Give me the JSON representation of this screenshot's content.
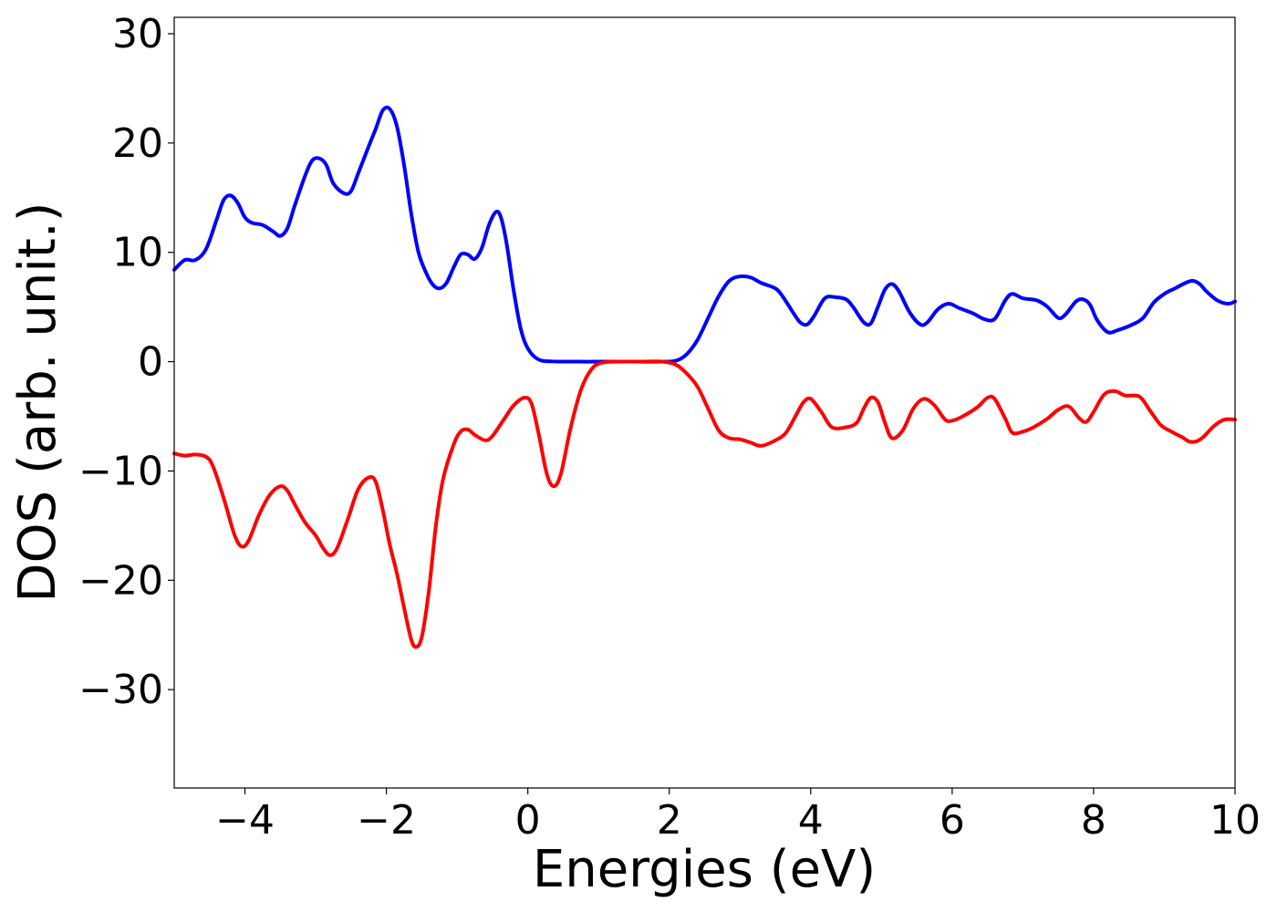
{
  "chart_data": {
    "type": "line",
    "xlabel": "Energies (eV)",
    "ylabel": "DOS (arb. unit.)",
    "xlim": [
      -5,
      10
    ],
    "ylim": [
      -39,
      31.5
    ],
    "x_ticks": [
      -4,
      -2,
      0,
      2,
      4,
      6,
      8,
      10
    ],
    "x_tick_labels": [
      "−4",
      "−2",
      "0",
      "2",
      "4",
      "6",
      "8",
      "10"
    ],
    "y_ticks": [
      -30,
      -20,
      -10,
      0,
      10,
      20,
      30
    ],
    "y_tick_labels": [
      "−30",
      "−20",
      "−10",
      "0",
      "10",
      "20",
      "30"
    ],
    "grid": false,
    "series": [
      {
        "color": "#0000ff",
        "points": [
          [
            -5.0,
            8.4
          ],
          [
            -4.85,
            9.3
          ],
          [
            -4.7,
            9.3
          ],
          [
            -4.55,
            10.3
          ],
          [
            -4.4,
            13.0
          ],
          [
            -4.3,
            14.8
          ],
          [
            -4.2,
            15.2
          ],
          [
            -4.1,
            14.5
          ],
          [
            -4.0,
            13.2
          ],
          [
            -3.9,
            12.7
          ],
          [
            -3.75,
            12.5
          ],
          [
            -3.6,
            11.9
          ],
          [
            -3.5,
            11.5
          ],
          [
            -3.4,
            12.2
          ],
          [
            -3.3,
            14.2
          ],
          [
            -3.15,
            17.0
          ],
          [
            -3.05,
            18.4
          ],
          [
            -2.95,
            18.6
          ],
          [
            -2.85,
            18.0
          ],
          [
            -2.75,
            16.3
          ],
          [
            -2.6,
            15.4
          ],
          [
            -2.5,
            15.6
          ],
          [
            -2.4,
            17.2
          ],
          [
            -2.25,
            19.7
          ],
          [
            -2.15,
            21.3
          ],
          [
            -2.05,
            23.0
          ],
          [
            -1.95,
            23.1
          ],
          [
            -1.85,
            21.5
          ],
          [
            -1.75,
            18.0
          ],
          [
            -1.65,
            13.6
          ],
          [
            -1.55,
            10.1
          ],
          [
            -1.45,
            8.3
          ],
          [
            -1.35,
            7.1
          ],
          [
            -1.25,
            6.7
          ],
          [
            -1.15,
            7.2
          ],
          [
            -1.05,
            8.6
          ],
          [
            -0.95,
            9.8
          ],
          [
            -0.85,
            9.8
          ],
          [
            -0.75,
            9.4
          ],
          [
            -0.65,
            10.4
          ],
          [
            -0.55,
            12.5
          ],
          [
            -0.45,
            13.7
          ],
          [
            -0.38,
            13.2
          ],
          [
            -0.3,
            10.8
          ],
          [
            -0.2,
            6.5
          ],
          [
            -0.1,
            3.0
          ],
          [
            0.0,
            1.2
          ],
          [
            0.15,
            0.2
          ],
          [
            0.35,
            0.02
          ],
          [
            0.7,
            0.0
          ],
          [
            1.0,
            0.0
          ],
          [
            1.5,
            0.0
          ],
          [
            1.9,
            0.0
          ],
          [
            2.1,
            0.1
          ],
          [
            2.25,
            0.7
          ],
          [
            2.4,
            2.0
          ],
          [
            2.55,
            4.0
          ],
          [
            2.7,
            6.0
          ],
          [
            2.85,
            7.4
          ],
          [
            3.0,
            7.8
          ],
          [
            3.15,
            7.7
          ],
          [
            3.3,
            7.2
          ],
          [
            3.5,
            6.7
          ],
          [
            3.6,
            6.0
          ],
          [
            3.75,
            4.5
          ],
          [
            3.85,
            3.6
          ],
          [
            3.95,
            3.4
          ],
          [
            4.05,
            4.2
          ],
          [
            4.2,
            5.8
          ],
          [
            4.35,
            5.9
          ],
          [
            4.5,
            5.7
          ],
          [
            4.6,
            5.0
          ],
          [
            4.75,
            3.6
          ],
          [
            4.85,
            3.5
          ],
          [
            4.95,
            5.0
          ],
          [
            5.05,
            6.6
          ],
          [
            5.15,
            7.1
          ],
          [
            5.25,
            6.4
          ],
          [
            5.4,
            4.5
          ],
          [
            5.55,
            3.4
          ],
          [
            5.65,
            3.6
          ],
          [
            5.8,
            4.8
          ],
          [
            5.95,
            5.3
          ],
          [
            6.1,
            4.9
          ],
          [
            6.3,
            4.4
          ],
          [
            6.45,
            3.9
          ],
          [
            6.6,
            3.9
          ],
          [
            6.75,
            5.6
          ],
          [
            6.85,
            6.2
          ],
          [
            7.0,
            5.8
          ],
          [
            7.2,
            5.6
          ],
          [
            7.35,
            5.0
          ],
          [
            7.5,
            4.0
          ],
          [
            7.6,
            4.3
          ],
          [
            7.75,
            5.5
          ],
          [
            7.85,
            5.7
          ],
          [
            7.95,
            5.2
          ],
          [
            8.05,
            3.8
          ],
          [
            8.2,
            2.7
          ],
          [
            8.35,
            2.9
          ],
          [
            8.55,
            3.4
          ],
          [
            8.7,
            4.0
          ],
          [
            8.85,
            5.4
          ],
          [
            9.0,
            6.2
          ],
          [
            9.15,
            6.7
          ],
          [
            9.3,
            7.2
          ],
          [
            9.4,
            7.4
          ],
          [
            9.5,
            7.1
          ],
          [
            9.6,
            6.4
          ],
          [
            9.75,
            5.6
          ],
          [
            9.9,
            5.3
          ],
          [
            10.0,
            5.5
          ]
        ]
      },
      {
        "color": "#ff0000",
        "points": [
          [
            -5.0,
            -8.4
          ],
          [
            -4.85,
            -8.6
          ],
          [
            -4.7,
            -8.5
          ],
          [
            -4.55,
            -8.7
          ],
          [
            -4.45,
            -9.6
          ],
          [
            -4.3,
            -12.5
          ],
          [
            -4.15,
            -15.8
          ],
          [
            -4.05,
            -16.9
          ],
          [
            -3.95,
            -16.4
          ],
          [
            -3.8,
            -14.0
          ],
          [
            -3.65,
            -12.2
          ],
          [
            -3.5,
            -11.4
          ],
          [
            -3.4,
            -11.8
          ],
          [
            -3.3,
            -13.0
          ],
          [
            -3.15,
            -14.7
          ],
          [
            -3.0,
            -15.9
          ],
          [
            -2.9,
            -17.0
          ],
          [
            -2.8,
            -17.7
          ],
          [
            -2.7,
            -17.1
          ],
          [
            -2.55,
            -14.5
          ],
          [
            -2.4,
            -11.7
          ],
          [
            -2.25,
            -10.6
          ],
          [
            -2.15,
            -11.0
          ],
          [
            -2.05,
            -13.6
          ],
          [
            -1.95,
            -16.8
          ],
          [
            -1.85,
            -19.4
          ],
          [
            -1.75,
            -22.5
          ],
          [
            -1.65,
            -25.4
          ],
          [
            -1.58,
            -26.1
          ],
          [
            -1.5,
            -25.2
          ],
          [
            -1.4,
            -21.0
          ],
          [
            -1.3,
            -15.0
          ],
          [
            -1.2,
            -10.8
          ],
          [
            -1.05,
            -7.6
          ],
          [
            -0.95,
            -6.4
          ],
          [
            -0.85,
            -6.2
          ],
          [
            -0.75,
            -6.7
          ],
          [
            -0.6,
            -7.2
          ],
          [
            -0.5,
            -6.8
          ],
          [
            -0.35,
            -5.4
          ],
          [
            -0.2,
            -4.0
          ],
          [
            -0.05,
            -3.3
          ],
          [
            0.05,
            -3.8
          ],
          [
            0.15,
            -6.5
          ],
          [
            0.27,
            -10.3
          ],
          [
            0.37,
            -11.4
          ],
          [
            0.47,
            -10.2
          ],
          [
            0.6,
            -6.2
          ],
          [
            0.75,
            -2.6
          ],
          [
            0.9,
            -0.7
          ],
          [
            1.05,
            -0.1
          ],
          [
            1.3,
            0.0
          ],
          [
            1.6,
            0.0
          ],
          [
            1.9,
            0.0
          ],
          [
            2.1,
            -0.3
          ],
          [
            2.25,
            -1.1
          ],
          [
            2.4,
            -2.3
          ],
          [
            2.55,
            -4.3
          ],
          [
            2.7,
            -6.3
          ],
          [
            2.85,
            -7.0
          ],
          [
            3.0,
            -7.1
          ],
          [
            3.15,
            -7.4
          ],
          [
            3.3,
            -7.7
          ],
          [
            3.5,
            -7.2
          ],
          [
            3.65,
            -6.5
          ],
          [
            3.8,
            -4.8
          ],
          [
            3.9,
            -3.7
          ],
          [
            4.0,
            -3.4
          ],
          [
            4.15,
            -4.6
          ],
          [
            4.3,
            -6.0
          ],
          [
            4.5,
            -6.0
          ],
          [
            4.65,
            -5.6
          ],
          [
            4.75,
            -4.3
          ],
          [
            4.85,
            -3.3
          ],
          [
            4.95,
            -3.7
          ],
          [
            5.05,
            -5.6
          ],
          [
            5.15,
            -7.0
          ],
          [
            5.3,
            -6.3
          ],
          [
            5.45,
            -4.3
          ],
          [
            5.6,
            -3.4
          ],
          [
            5.75,
            -4.0
          ],
          [
            5.9,
            -5.3
          ],
          [
            6.0,
            -5.4
          ],
          [
            6.15,
            -5.0
          ],
          [
            6.35,
            -4.2
          ],
          [
            6.5,
            -3.3
          ],
          [
            6.6,
            -3.4
          ],
          [
            6.75,
            -5.2
          ],
          [
            6.85,
            -6.5
          ],
          [
            7.0,
            -6.4
          ],
          [
            7.15,
            -6.0
          ],
          [
            7.35,
            -5.2
          ],
          [
            7.5,
            -4.4
          ],
          [
            7.65,
            -4.1
          ],
          [
            7.8,
            -5.2
          ],
          [
            7.9,
            -5.5
          ],
          [
            8.0,
            -4.6
          ],
          [
            8.15,
            -3.0
          ],
          [
            8.3,
            -2.7
          ],
          [
            8.45,
            -3.1
          ],
          [
            8.65,
            -3.2
          ],
          [
            8.8,
            -4.5
          ],
          [
            8.95,
            -5.8
          ],
          [
            9.1,
            -6.4
          ],
          [
            9.25,
            -6.9
          ],
          [
            9.35,
            -7.3
          ],
          [
            9.45,
            -7.3
          ],
          [
            9.55,
            -6.9
          ],
          [
            9.7,
            -5.9
          ],
          [
            9.85,
            -5.3
          ],
          [
            10.0,
            -5.3
          ]
        ]
      }
    ]
  }
}
